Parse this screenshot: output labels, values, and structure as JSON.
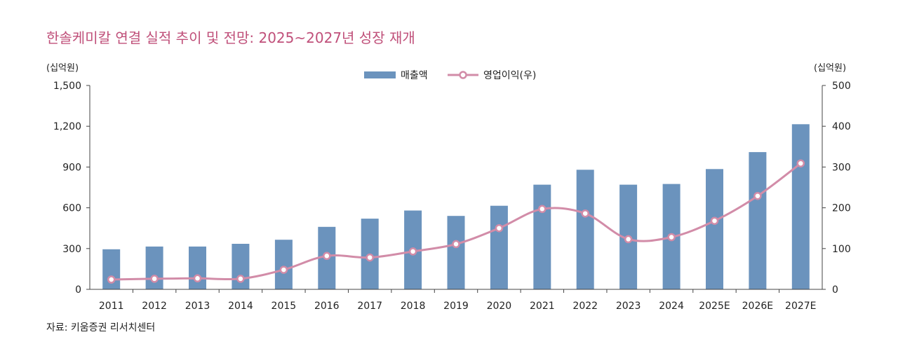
{
  "chart_data": {
    "type": "bar",
    "title": "한솔케미칼 연결 실적 추이 및 전망: 2025~2027년 성장 재개",
    "categories": [
      "2011",
      "2012",
      "2013",
      "2014",
      "2015",
      "2016",
      "2017",
      "2018",
      "2019",
      "2020",
      "2021",
      "2022",
      "2023",
      "2024",
      "2025E",
      "2026E",
      "2027E"
    ],
    "series": [
      {
        "name": "매출액",
        "type": "bar",
        "axis": "left",
        "values": [
          295,
          315,
          315,
          335,
          365,
          460,
          520,
          580,
          540,
          615,
          770,
          880,
          770,
          775,
          885,
          1010,
          1215
        ]
      },
      {
        "name": "영업이익(우)",
        "type": "line",
        "axis": "right",
        "values": [
          24,
          26,
          27,
          26,
          48,
          82,
          78,
          93,
          111,
          150,
          197,
          186,
          123,
          128,
          168,
          229,
          309
        ]
      }
    ],
    "y_left": {
      "unit": "(십억원)",
      "ylim": [
        0,
        1500
      ],
      "ticks": [
        "0",
        "300",
        "600",
        "900",
        "1,200",
        "1,500"
      ]
    },
    "y_right": {
      "unit": "(십억원)",
      "ylim": [
        0,
        500
      ],
      "ticks": [
        "0",
        "100",
        "200",
        "300",
        "400",
        "500"
      ]
    },
    "legend_position": "top-center",
    "grid": false,
    "source": "자료: 키움증권 리서치센터",
    "colors": {
      "bar": "#6b93bd",
      "line": "#d28ca8",
      "title": "#c0507a"
    }
  }
}
